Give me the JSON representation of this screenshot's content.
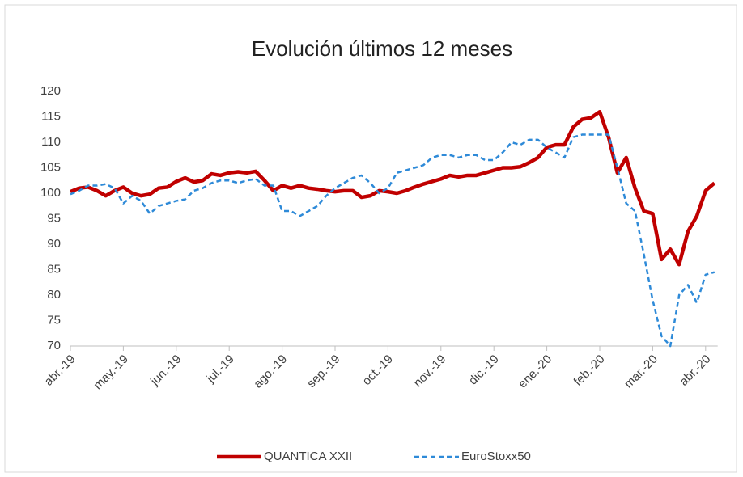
{
  "chart_data": {
    "type": "line",
    "title": "Evolución últimos 12 meses",
    "categories": [
      "abr.-19",
      null,
      null,
      null,
      null,
      null,
      "may.-19",
      null,
      null,
      null,
      null,
      null,
      "jun.-19",
      null,
      null,
      null,
      null,
      null,
      "jul.-19",
      null,
      null,
      null,
      null,
      null,
      "ago.-19",
      null,
      null,
      null,
      null,
      null,
      "sep.-19",
      null,
      null,
      null,
      null,
      null,
      "oct.-19",
      null,
      null,
      null,
      null,
      null,
      "nov.-19",
      null,
      null,
      null,
      null,
      null,
      "dic.-19",
      null,
      null,
      null,
      null,
      null,
      "ene.-20",
      null,
      null,
      null,
      null,
      null,
      "feb.-20",
      null,
      null,
      null,
      null,
      null,
      "mar.-20",
      null,
      null,
      null,
      null,
      null,
      "abr.-20",
      null
    ],
    "series": [
      {
        "name": "QUANTICA XXII",
        "color": "#c00000",
        "dash": false,
        "values": [
          100.3,
          101,
          101.2,
          100.5,
          99.5,
          100.5,
          101.2,
          100,
          99.5,
          99.8,
          101,
          101.2,
          102.3,
          103,
          102.2,
          102.5,
          103.8,
          103.5,
          104,
          104.2,
          104,
          104.3,
          102.5,
          100.5,
          101.5,
          101,
          101.5,
          101,
          100.8,
          100.5,
          100.3,
          100.5,
          100.5,
          99.2,
          99.5,
          100.5,
          100.3,
          100,
          100.5,
          101.2,
          101.8,
          102.3,
          102.8,
          103.5,
          103.2,
          103.5,
          103.5,
          104,
          104.5,
          105,
          105,
          105.2,
          106,
          107,
          109,
          109.5,
          109.5,
          113,
          114.5,
          114.8,
          116,
          111,
          104,
          107,
          101,
          96.5,
          96,
          87,
          89,
          86,
          92.5,
          95.5,
          100.5,
          102
        ]
      },
      {
        "name": "EuroStoxx50",
        "color": "#2e8ad8",
        "dash": true,
        "values": [
          99.8,
          100.5,
          101.5,
          101.5,
          101.8,
          101,
          98,
          99.5,
          98.5,
          96,
          97.5,
          98,
          98.5,
          98.8,
          100.5,
          101,
          102,
          102.5,
          102.5,
          102,
          102.5,
          102.8,
          101.5,
          101.5,
          96.5,
          96.5,
          95.5,
          96.5,
          97.5,
          99.5,
          101,
          102,
          103,
          103.5,
          102,
          100,
          101,
          104,
          104.5,
          105,
          105.5,
          107,
          107.5,
          107.5,
          107,
          107.5,
          107.5,
          106.5,
          106.5,
          108,
          110,
          109.5,
          110.5,
          110.5,
          109,
          108,
          107,
          111,
          111.5,
          111.5,
          111.5,
          111.5,
          105,
          98,
          96.5,
          88,
          79,
          72,
          70,
          80,
          82,
          78.5,
          84,
          84.5
        ]
      }
    ],
    "ylim": [
      70,
      120
    ],
    "yticks": [
      70,
      75,
      80,
      85,
      90,
      95,
      100,
      105,
      110,
      115,
      120
    ],
    "grid": false,
    "legend": "bottom"
  }
}
